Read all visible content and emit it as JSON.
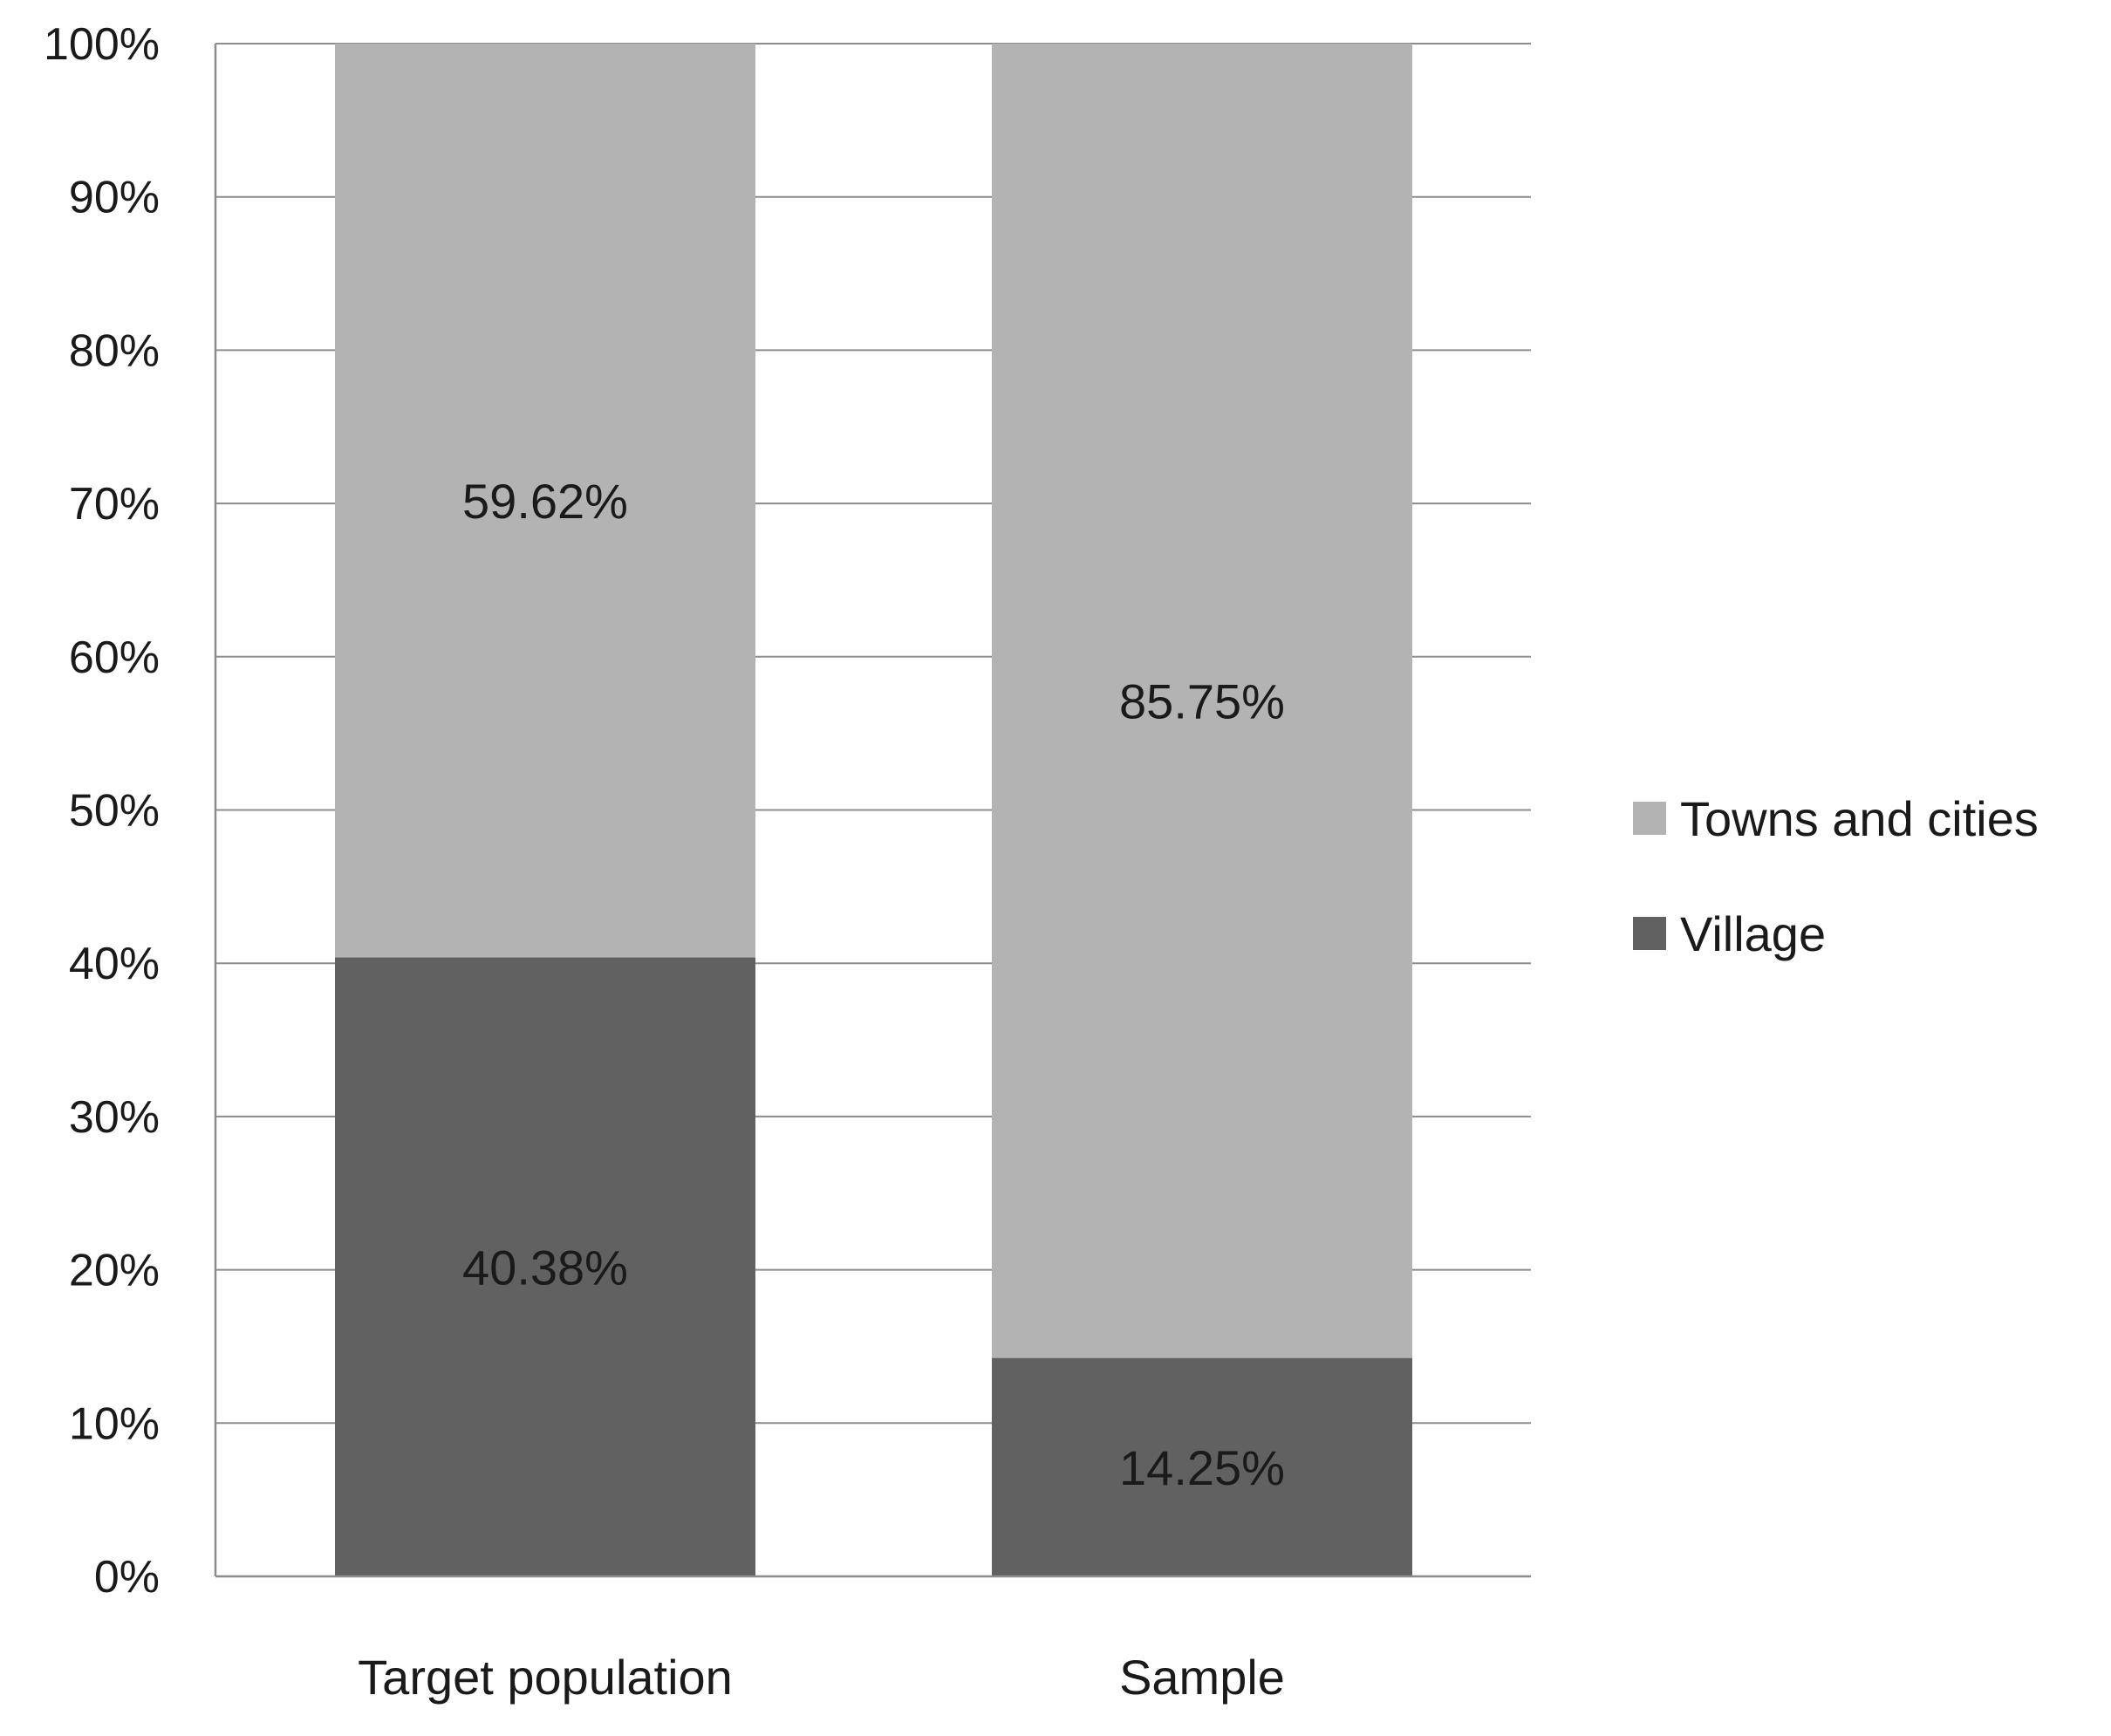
{
  "chart_data": {
    "type": "bar",
    "stacked": true,
    "categories": [
      "Target population",
      "Sample"
    ],
    "series": [
      {
        "name": "Village",
        "values": [
          40.38,
          14.25
        ],
        "labels": [
          "40.38%",
          "14.25%"
        ],
        "color": "#616161"
      },
      {
        "name": "Towns and cities",
        "values": [
          59.62,
          85.75
        ],
        "labels": [
          "59.62%",
          "85.75%"
        ],
        "color": "#b3b3b3"
      }
    ],
    "ylim": [
      0,
      100
    ],
    "yticks": [
      "0%",
      "10%",
      "20%",
      "30%",
      "40%",
      "50%",
      "60%",
      "70%",
      "80%",
      "90%",
      "100%"
    ],
    "grid": true,
    "legend_position": "right",
    "legend_order": [
      "Towns and cities",
      "Village"
    ]
  }
}
